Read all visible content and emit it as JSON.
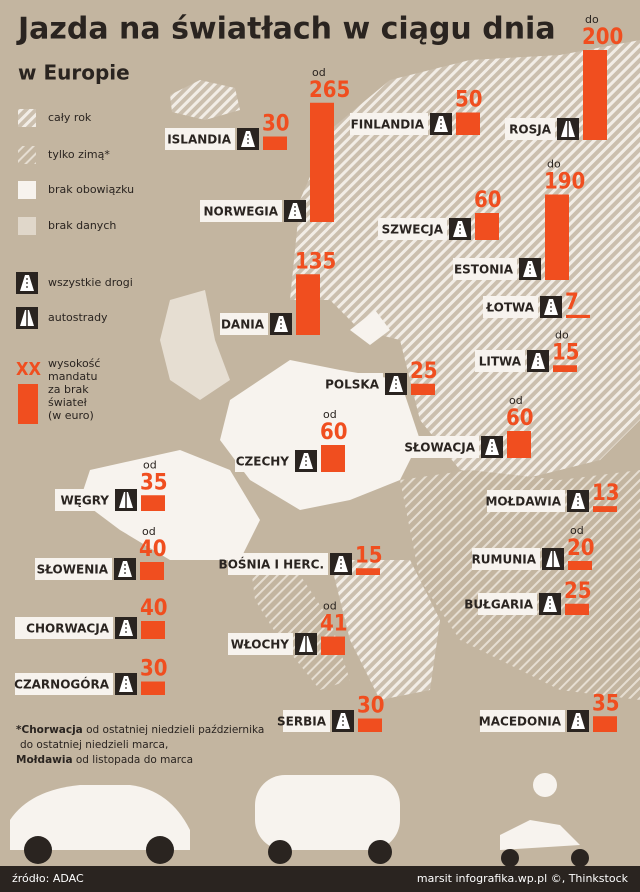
{
  "header": {
    "title": "Jazda na światłach w ciągu dnia",
    "subtitle": "w Europie"
  },
  "legend": {
    "items": [
      "cały rok",
      "tylko zimą*",
      "brak obowiązku",
      "brak danych",
      "wszystkie drogi",
      "autostrady"
    ],
    "fine_sample": "XX",
    "fine_text": [
      "wysokość",
      "mandatu",
      "za brak",
      "świateł",
      "(w euro)"
    ]
  },
  "countries": [
    {
      "name": "ISLANDIA",
      "fine": 30,
      "road": "all"
    },
    {
      "name": "NORWEGIA",
      "prefix": "od",
      "fine": 265,
      "road": "all"
    },
    {
      "name": "FINLANDIA",
      "fine": 50,
      "road": "all"
    },
    {
      "name": "ROSJA",
      "prefix": "do",
      "fine": 200,
      "road": "motorway"
    },
    {
      "name": "SZWECJA",
      "fine": 60,
      "road": "all"
    },
    {
      "name": "ESTONIA",
      "prefix": "do",
      "fine": 190,
      "road": "all"
    },
    {
      "name": "DANIA",
      "fine": 135,
      "road": "all"
    },
    {
      "name": "ŁOTWA",
      "fine": 7,
      "road": "all"
    },
    {
      "name": "LITWA",
      "prefix": "do",
      "fine": 15,
      "road": "all"
    },
    {
      "name": "POLSKA",
      "fine": 25,
      "road": "all"
    },
    {
      "name": "CZECHY",
      "prefix": "od",
      "fine": 60,
      "road": "all"
    },
    {
      "name": "SŁOWACJA",
      "prefix": "od",
      "fine": 60,
      "road": "all"
    },
    {
      "name": "WĘGRY",
      "prefix": "od",
      "fine": 35,
      "road": "motorway"
    },
    {
      "name": "MOŁDAWIA",
      "fine": 13,
      "road": "all"
    },
    {
      "name": "SŁOWENIA",
      "prefix": "od",
      "fine": 40,
      "road": "all"
    },
    {
      "name": "RUMUNIA",
      "prefix": "od",
      "fine": 20,
      "road": "motorway"
    },
    {
      "name": "BOŚNIA I HERC.",
      "fine": 15,
      "road": "all"
    },
    {
      "name": "BUŁGARIA",
      "fine": 25,
      "road": "all"
    },
    {
      "name": "CHORWACJA",
      "fine": 40,
      "road": "all"
    },
    {
      "name": "WŁOCHY",
      "prefix": "od",
      "fine": 41,
      "road": "motorway"
    },
    {
      "name": "CZARNOGÓRA",
      "fine": 30,
      "road": "all"
    },
    {
      "name": "SERBIA",
      "fine": 30,
      "road": "all"
    },
    {
      "name": "MACEDONIA",
      "fine": 35,
      "road": "all"
    }
  ],
  "footnote": {
    "lines": [
      [
        "*Chorwacja",
        " od ostatniej niedzieli października"
      ],
      [
        "do ostatniej niedzieli marca,"
      ],
      [
        "Mołdawia",
        " od listopada do marca"
      ]
    ]
  },
  "footer": {
    "source": "źródło: ADAC",
    "credit": "marsit infografika.wp.pl ©, Thinkstock"
  }
}
